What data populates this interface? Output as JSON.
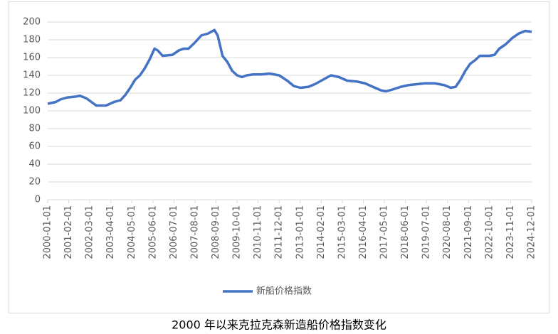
{
  "chart_data": {
    "type": "line",
    "title": "2000 年以来克拉克森新造船价格指数变化",
    "x": [
      "2000-01-01",
      "2000-06-01",
      "2000-09-01",
      "2001-01-01",
      "2001-06-01",
      "2001-09-01",
      "2002-01-01",
      "2002-04-01",
      "2002-07-01",
      "2003-01-01",
      "2003-06-01",
      "2003-10-01",
      "2004-01-01",
      "2004-04-01",
      "2004-07-01",
      "2004-10-01",
      "2005-01-01",
      "2005-04-01",
      "2005-07-01",
      "2005-09-01",
      "2005-12-01",
      "2006-06-01",
      "2006-10-01",
      "2007-01-01",
      "2007-04-01",
      "2007-08-01",
      "2007-12-01",
      "2008-04-01",
      "2008-08-01",
      "2008-10-01",
      "2009-01-01",
      "2009-04-01",
      "2009-07-01",
      "2009-10-01",
      "2010-01-01",
      "2010-04-01",
      "2010-08-01",
      "2011-01-01",
      "2011-06-01",
      "2011-12-01",
      "2012-05-01",
      "2012-09-01",
      "2013-01-01",
      "2013-06-01",
      "2013-10-01",
      "2014-03-01",
      "2014-08-01",
      "2015-01-01",
      "2015-06-01",
      "2015-12-01",
      "2016-05-01",
      "2016-10-01",
      "2017-03-01",
      "2017-06-01",
      "2017-10-01",
      "2018-03-01",
      "2018-08-01",
      "2019-01-01",
      "2019-06-01",
      "2019-12-01",
      "2020-06-01",
      "2020-10-01",
      "2021-01-01",
      "2021-04-01",
      "2021-07-01",
      "2021-10-01",
      "2022-01-01",
      "2022-04-01",
      "2022-10-01",
      "2023-01-01",
      "2023-04-01",
      "2023-08-01",
      "2023-12-01",
      "2024-04-01",
      "2024-08-01",
      "2024-12-01"
    ],
    "series": [
      {
        "name": "新船价格指数",
        "color": "#4472c4",
        "values": [
          108,
          110,
          113,
          115,
          116,
          117,
          114,
          110,
          106,
          106,
          110,
          112,
          118,
          126,
          135,
          140,
          148,
          158,
          170,
          168,
          162,
          163,
          168,
          170,
          170,
          177,
          185,
          187,
          191,
          185,
          162,
          155,
          145,
          140,
          138,
          140,
          141,
          141,
          142,
          140,
          134,
          128,
          126,
          127,
          130,
          135,
          140,
          138,
          134,
          133,
          131,
          127,
          123,
          122,
          124,
          127,
          129,
          130,
          131,
          131,
          129,
          126,
          127,
          135,
          145,
          153,
          157,
          162,
          162,
          163,
          170,
          175,
          182,
          187,
          190,
          189
        ]
      }
    ],
    "xlim": [
      "2000-01-01",
      "2024-12-01"
    ],
    "xticks": [
      "2000-01-01",
      "2001-02-01",
      "2002-03-01",
      "2003-04-01",
      "2004-05-01",
      "2005-06-01",
      "2006-07-01",
      "2007-08-01",
      "2008-09-01",
      "2009-10-01",
      "2010-11-01",
      "2011-12-01",
      "2013-01-01",
      "2014-02-01",
      "2015-03-01",
      "2016-04-01",
      "2017-05-01",
      "2018-06-01",
      "2019-07-01",
      "2020-08-01",
      "2021-09-01",
      "2022-10-01",
      "2023-11-01",
      "2024-12-01"
    ],
    "ylim": [
      0,
      200
    ],
    "yticks": [
      0,
      20,
      40,
      60,
      80,
      100,
      120,
      140,
      160,
      180,
      200
    ],
    "grid": true,
    "legend": "bottom"
  }
}
